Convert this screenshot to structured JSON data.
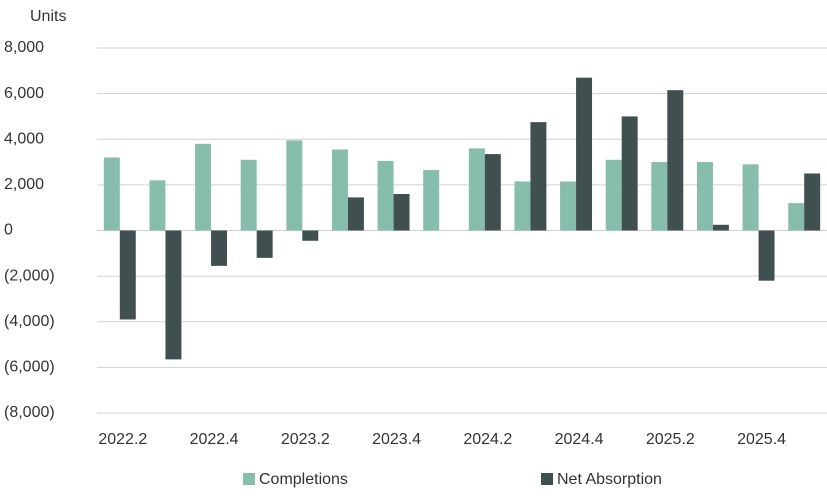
{
  "chart_data": {
    "type": "bar",
    "y_label": "Units",
    "categories": [
      "2022.2",
      null,
      "2022.4",
      null,
      "2023.2",
      null,
      "2023.4",
      null,
      "2024.2",
      null,
      "2024.4",
      null,
      "2025.2",
      null,
      "2025.4",
      null
    ],
    "series": [
      {
        "name": "Completions",
        "color": "#86bdad",
        "values": [
          3200,
          2200,
          3800,
          3100,
          3950,
          3550,
          3050,
          2650,
          3600,
          2150,
          2150,
          3100,
          3000,
          3000,
          2900,
          1200
        ]
      },
      {
        "name": "Net Absorption",
        "color": "#404f4f",
        "values": [
          -3900,
          -5650,
          -1550,
          -1200,
          -450,
          1450,
          1600,
          0,
          3350,
          4750,
          6700,
          5000,
          6150,
          250,
          -2200,
          2500
        ]
      }
    ],
    "ylim": [
      -8000,
      8000
    ],
    "yticks": [
      {
        "value": -8000,
        "label": "(8,000)"
      },
      {
        "value": -6000,
        "label": "(6,000)"
      },
      {
        "value": -4000,
        "label": "(4,000)"
      },
      {
        "value": -2000,
        "label": "(2,000)"
      },
      0,
      {
        "value": 2000,
        "label": "2,000"
      },
      {
        "value": 4000,
        "label": "4,000"
      },
      {
        "value": 6000,
        "label": "6,000"
      },
      {
        "value": 8000,
        "label": "8,000"
      }
    ],
    "grid": true,
    "legend": "bottom"
  }
}
